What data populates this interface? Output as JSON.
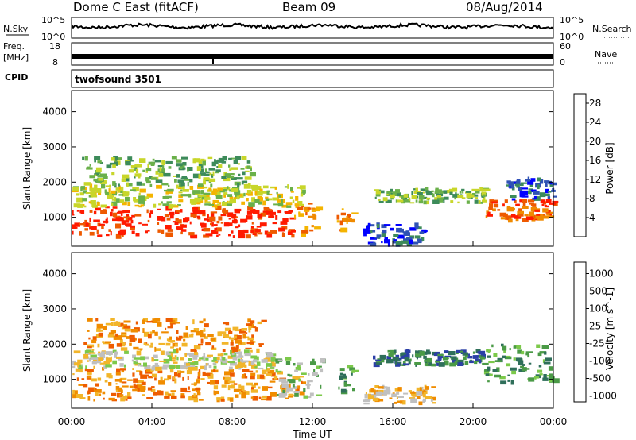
{
  "header": {
    "station": "Dome C East (fitACF)",
    "beam": "Beam 09",
    "date": "08/Aug/2014"
  },
  "top_panels": {
    "nsky_label": "N.Sky",
    "nsky_ticks": [
      "10^5",
      "10^0"
    ],
    "nsearch_label": "N.Search",
    "freq_label_1": "Freq.",
    "freq_label_2": "[MHz]",
    "freq_ticks": [
      "18",
      "8"
    ],
    "nave_label": "Nave",
    "nave_ticks": [
      "60",
      "0"
    ],
    "cpid_label": "CPID",
    "cpid_text": "twofsound 3501"
  },
  "colors": {
    "power": [
      "#0000ff",
      "#2f52b4",
      "#3d8b5a",
      "#6ab04a",
      "#c8d62a",
      "#f4b400",
      "#f08a00",
      "#ee5a00",
      "#ff1a00"
    ],
    "velocity": [
      "#2b3fa6",
      "#2f6f5a",
      "#4a9a46",
      "#7cc94a",
      "#c0c0c0",
      "#f2b52a",
      "#f08c00",
      "#ee5c00",
      "#e82a00"
    ]
  },
  "chart_data": [
    {
      "type": "heatmap",
      "title": "",
      "xlabel": "Time UT",
      "ylabel": "Slant Range [km]",
      "x_tick_labels": [
        "00:00",
        "04:00",
        "08:00",
        "12:00",
        "16:00",
        "20:00",
        "00:00"
      ],
      "xlim_hours": [
        0,
        24
      ],
      "ylim": [
        180,
        4600
      ],
      "y_ticks": [
        1000,
        2000,
        3000,
        4000
      ],
      "colorbar": {
        "label": "Power [dB]",
        "ticks": [
          4,
          8,
          12,
          16,
          20,
          24,
          28
        ],
        "range": [
          0,
          30
        ]
      },
      "regions": [
        {
          "t0": 0.0,
          "t1": 11.0,
          "r0": 450,
          "r1": 1300,
          "level": 8
        },
        {
          "t0": 11.0,
          "t1": 12.2,
          "r0": 400,
          "r1": 1400,
          "level": 6
        },
        {
          "t0": 0.0,
          "t1": 11.5,
          "r0": 1300,
          "r1": 1900,
          "level": 4
        },
        {
          "t0": 0.5,
          "t1": 9.0,
          "r0": 1900,
          "r1": 2700,
          "level": 3
        },
        {
          "t0": 13.2,
          "t1": 14.0,
          "r0": 600,
          "r1": 1300,
          "level": 6
        },
        {
          "t0": 14.5,
          "t1": 17.5,
          "r0": 200,
          "r1": 800,
          "level": 1
        },
        {
          "t0": 15.0,
          "t1": 20.5,
          "r0": 1400,
          "r1": 1800,
          "level": 3
        },
        {
          "t0": 20.5,
          "t1": 24.0,
          "r0": 900,
          "r1": 1500,
          "level": 7
        },
        {
          "t0": 21.5,
          "t1": 24.0,
          "r0": 1500,
          "r1": 2100,
          "level": 1
        }
      ]
    },
    {
      "type": "heatmap",
      "title": "",
      "xlabel": "Time UT",
      "ylabel": "Slant Range [km]",
      "x_tick_labels": [
        "00:00",
        "04:00",
        "08:00",
        "12:00",
        "16:00",
        "20:00",
        "00:00"
      ],
      "xlim_hours": [
        0,
        24
      ],
      "ylim": [
        180,
        4600
      ],
      "y_ticks": [
        1000,
        2000,
        3000,
        4000
      ],
      "colorbar": {
        "label": "Velocity [m s^-1]",
        "ticks": [
          "1000",
          "500",
          "100",
          "25",
          "-25",
          "-100",
          "-500",
          "-1000"
        ]
      },
      "regions": [
        {
          "t0": 0.0,
          "t1": 11.5,
          "r0": 400,
          "r1": 1300,
          "level": 6
        },
        {
          "t0": 0.0,
          "t1": 10.0,
          "r0": 1300,
          "r1": 1800,
          "level": 4
        },
        {
          "t0": 0.5,
          "t1": 9.5,
          "r0": 1800,
          "r1": 2700,
          "level": 6
        },
        {
          "t0": 10.0,
          "t1": 12.5,
          "r0": 500,
          "r1": 1600,
          "level": 3
        },
        {
          "t0": 13.2,
          "t1": 14.0,
          "r0": 600,
          "r1": 1400,
          "level": 2
        },
        {
          "t0": 14.5,
          "t1": 18.0,
          "r0": 300,
          "r1": 800,
          "level": 5
        },
        {
          "t0": 15.0,
          "t1": 20.5,
          "r0": 1400,
          "r1": 1800,
          "level": 1
        },
        {
          "t0": 20.5,
          "t1": 24.0,
          "r0": 900,
          "r1": 2000,
          "level": 2
        }
      ]
    }
  ]
}
